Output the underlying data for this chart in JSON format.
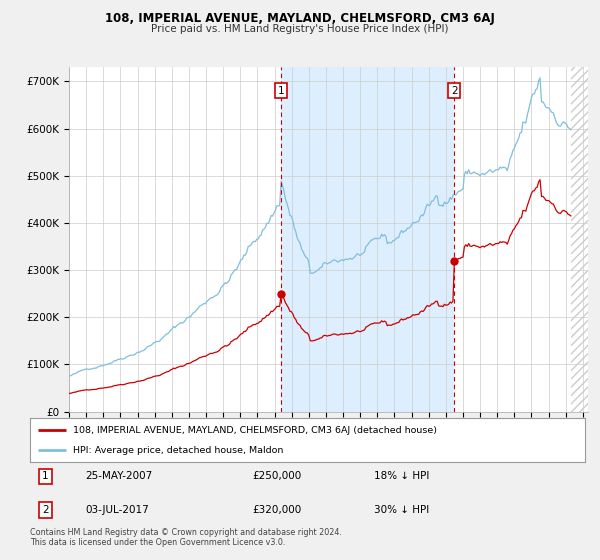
{
  "title": "108, IMPERIAL AVENUE, MAYLAND, CHELMSFORD, CM3 6AJ",
  "subtitle": "Price paid vs. HM Land Registry's House Price Index (HPI)",
  "ylabel_ticks": [
    "£0",
    "£100K",
    "£200K",
    "£300K",
    "£400K",
    "£500K",
    "£600K",
    "£700K"
  ],
  "ytick_values": [
    0,
    100000,
    200000,
    300000,
    400000,
    500000,
    600000,
    700000
  ],
  "ylim": [
    0,
    730000
  ],
  "xlim_start": 1995.0,
  "xlim_end": 2025.3,
  "hpi_color": "#7fbfdd",
  "property_color": "#cc0000",
  "marker1_x": 2007.38,
  "marker1_y": 250000,
  "marker1_label": "1",
  "marker1_date": "25-MAY-2007",
  "marker1_price": "£250,000",
  "marker1_hpi": "18% ↓ HPI",
  "marker2_x": 2017.5,
  "marker2_y": 320000,
  "marker2_label": "2",
  "marker2_date": "03-JUL-2017",
  "marker2_price": "£320,000",
  "marker2_hpi": "30% ↓ HPI",
  "legend_property": "108, IMPERIAL AVENUE, MAYLAND, CHELMSFORD, CM3 6AJ (detached house)",
  "legend_hpi": "HPI: Average price, detached house, Maldon",
  "footnote": "Contains HM Land Registry data © Crown copyright and database right 2024.\nThis data is licensed under the Open Government Licence v3.0.",
  "bg_color": "#f0f0f0",
  "plot_bg_color": "#ffffff",
  "grid_color": "#cccccc",
  "shade_color": "#ddeeff",
  "hatch_color": "#cccccc"
}
